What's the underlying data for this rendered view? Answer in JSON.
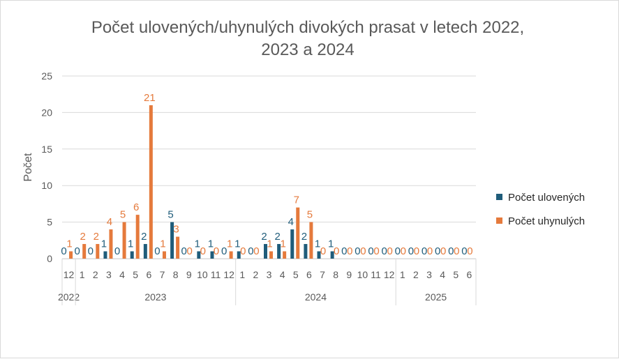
{
  "chart_data": {
    "type": "bar",
    "title_lines": [
      "Počet ulovených/uhynulých divokých prasat v letech 2022,",
      "2023 a 2024"
    ],
    "ylabel": "Počet",
    "xlabel": "",
    "ylim": [
      0,
      25
    ],
    "yticks": [
      "0",
      "5",
      "10",
      "15",
      "20",
      "25"
    ],
    "grid": true,
    "legend_position": "right",
    "categories": [
      "12",
      "1",
      "2",
      "3",
      "4",
      "5",
      "6",
      "7",
      "8",
      "9",
      "10",
      "11",
      "12",
      "1",
      "2",
      "3",
      "4",
      "5",
      "6",
      "7",
      "8",
      "9",
      "10",
      "11",
      "12",
      "1",
      "2",
      "3",
      "4",
      "5",
      "6"
    ],
    "year_groups": [
      {
        "label": "2022",
        "count": 1
      },
      {
        "label": "2023",
        "count": 12
      },
      {
        "label": "2024",
        "count": 12
      },
      {
        "label": "2025",
        "count": 6
      }
    ],
    "series": [
      {
        "name": "Počet ulovených",
        "color": "#1f5c7a",
        "values": [
          0,
          0,
          0,
          1,
          0,
          1,
          2,
          0,
          5,
          0,
          1,
          1,
          0,
          1,
          0,
          2,
          2,
          4,
          2,
          1,
          1,
          0,
          0,
          0,
          0,
          0,
          0,
          0,
          0,
          0,
          0
        ]
      },
      {
        "name": "Počet uhynulých",
        "color": "#e57a3c",
        "values": [
          1,
          2,
          2,
          4,
          5,
          6,
          21,
          1,
          3,
          0,
          0,
          0,
          1,
          0,
          0,
          1,
          1,
          7,
          5,
          0,
          0,
          0,
          0,
          0,
          0,
          0,
          0,
          0,
          0,
          0,
          0
        ]
      }
    ]
  }
}
